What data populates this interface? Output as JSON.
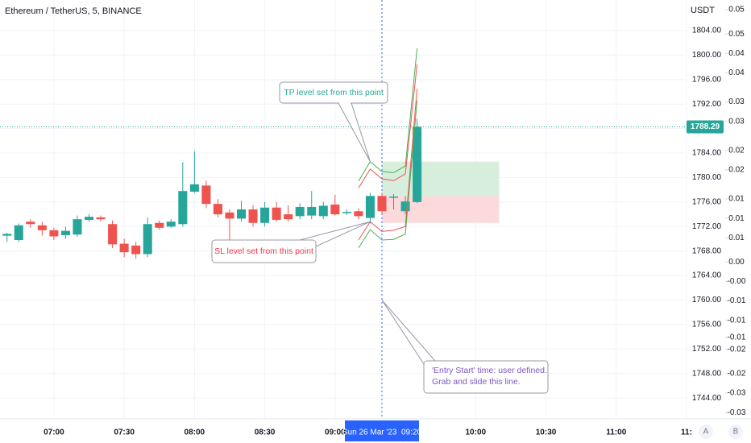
{
  "chart_data": {
    "type": "candlestick",
    "title": "Ethereum / TetherUS, 5, BINANCE",
    "y_axis_label": "USDT",
    "x": [
      "06:40",
      "06:45",
      "06:50",
      "06:55",
      "07:00",
      "07:05",
      "07:10",
      "07:15",
      "07:20",
      "07:25",
      "07:30",
      "07:35",
      "07:40",
      "07:45",
      "07:50",
      "07:55",
      "08:00",
      "08:05",
      "08:10",
      "08:15",
      "08:20",
      "08:25",
      "08:30",
      "08:35",
      "08:40",
      "08:45",
      "08:50",
      "08:55",
      "09:00",
      "09:05",
      "09:10",
      "09:15",
      "09:20",
      "09:25",
      "09:30",
      "09:35"
    ],
    "open": [
      1770.5,
      1769.8,
      1772.8,
      1772.2,
      1771.4,
      1770.6,
      1770.7,
      1773.1,
      1773.5,
      1772.4,
      1769.2,
      1768.9,
      1767.5,
      1772.6,
      1772,
      1772.4,
      1777.7,
      1778.7,
      1775.7,
      1774.3,
      1773.3,
      1774.8,
      1772.6,
      1775.1,
      1774,
      1773.7,
      1773.8,
      1773.7,
      1775.6,
      1774.2,
      1774.5,
      1773.4,
      1777,
      1776.7,
      1774.5,
      1776
    ],
    "high": [
      1771,
      1772.5,
      1773.2,
      1772.8,
      1771.8,
      1772,
      1773.8,
      1774,
      1773.8,
      1773,
      1770,
      1769.5,
      1773.5,
      1773,
      1773.2,
      1782.5,
      1784.3,
      1779.5,
      1776.5,
      1774.8,
      1776.2,
      1775.5,
      1776,
      1776,
      1775.5,
      1775.8,
      1777.8,
      1776,
      1777.2,
      1774.8,
      1775,
      1777.5,
      1777.5,
      1777.3,
      1777,
      1789.6
    ],
    "low": [
      1769.5,
      1769.5,
      1771.8,
      1770.5,
      1769.8,
      1770,
      1770.3,
      1772.8,
      1772.8,
      1768.5,
      1767,
      1766.8,
      1767,
      1771.5,
      1771.8,
      1772,
      1777.5,
      1775,
      1773.5,
      1769.8,
      1772.8,
      1772,
      1772,
      1772.8,
      1772.8,
      1773.2,
      1773.2,
      1773.2,
      1773.8,
      1773.9,
      1773.2,
      1772.5,
      1774,
      1774.8,
      1774,
      1775.8
    ],
    "close": [
      1770.8,
      1772.2,
      1772.4,
      1771.4,
      1770.4,
      1771.3,
      1773.2,
      1773.6,
      1773.2,
      1769.1,
      1767.8,
      1767.5,
      1772.4,
      1771.8,
      1772.8,
      1777.8,
      1778.9,
      1775.7,
      1774,
      1773.3,
      1774.8,
      1772.6,
      1775.1,
      1773.1,
      1773.2,
      1775.2,
      1775.2,
      1775.4,
      1774,
      1774.4,
      1773.7,
      1777,
      1774.5,
      1776.9,
      1776.1,
      1788.29
    ],
    "up_color": "#26a69a",
    "down_color": "#ef5350",
    "xlim": [
      "06:37",
      "11:30"
    ],
    "xticks": [
      "07:00",
      "07:30",
      "08:00",
      "08:30",
      "09:00",
      "10:00",
      "10:30",
      "11:00",
      {
        "value": "11:30",
        "label": "11:"
      }
    ],
    "ylim": [
      1740.6,
      1809
    ],
    "yticks": [
      {
        "value": 1744,
        "label": "1744.00"
      },
      {
        "value": 1748,
        "label": "1748.00"
      },
      {
        "value": 1752,
        "label": "1752.00"
      },
      {
        "value": 1756,
        "label": "1756.00"
      },
      {
        "value": 1760,
        "label": "1760.00"
      },
      {
        "value": 1764,
        "label": "1764.00"
      },
      {
        "value": 1768,
        "label": "1768.00"
      },
      {
        "value": 1772,
        "label": "1772.00"
      },
      {
        "value": 1776,
        "label": "1776.00"
      },
      {
        "value": 1780,
        "label": "1780.00"
      },
      {
        "value": 1784,
        "label": "1784.00"
      },
      {
        "value": 1788,
        "label": "1788.00"
      },
      {
        "value": 1792,
        "label": "1792.00"
      },
      {
        "value": 1796,
        "label": "1796.00"
      },
      {
        "value": 1800,
        "label": "1800.00"
      },
      {
        "value": 1804,
        "label": "1804.00"
      }
    ],
    "y2lim": [
      -0.0313,
      0.055
    ],
    "y2ticks": [
      {
        "value": 0.053,
        "label": "0.05"
      },
      {
        "value": 0.048,
        "label": "0.05"
      },
      {
        "value": 0.044,
        "label": "0.04"
      },
      {
        "value": 0.04,
        "label": "0.04"
      },
      {
        "value": 0.034,
        "label": "0.03"
      },
      {
        "value": 0.03,
        "label": "0.03"
      },
      {
        "value": 0.024,
        "label": "0.02"
      },
      {
        "value": 0.02,
        "label": "0.02"
      },
      {
        "value": 0.014,
        "label": "0.01"
      },
      {
        "value": 0.01,
        "label": "0.01"
      },
      {
        "value": 0.006,
        "label": "0.01"
      },
      {
        "value": 0.001,
        "label": "0.00"
      },
      {
        "value": -0.003,
        "label": "-0.00"
      },
      {
        "value": -0.007,
        "label": "-0.01"
      },
      {
        "value": -0.011,
        "label": "-0.01"
      },
      {
        "value": -0.0145,
        "label": "-0.01"
      },
      {
        "value": -0.017,
        "label": "-0.02"
      },
      {
        "value": -0.022,
        "label": "-0.02"
      },
      {
        "value": -0.026,
        "label": "-0.03"
      },
      {
        "value": -0.03,
        "label": "-0.03"
      }
    ],
    "grid": true,
    "crosshair": {
      "x": "09:20",
      "label": "Sun 26 Mar '23  09:20",
      "color": "#2962ff"
    },
    "lines": [
      {
        "color": "#4caf50",
        "x": [
          "09:10",
          "09:15",
          "09:20",
          "09:25",
          "09:30",
          "09:35"
        ],
        "values": [
          1779.4,
          1782.6,
          1781.0,
          1780.8,
          1781.9,
          1801.1
        ]
      },
      {
        "color": "#ef5350",
        "x": [
          "09:10",
          "09:15",
          "09:20",
          "09:25",
          "09:30",
          "09:35"
        ],
        "values": [
          1778.3,
          1781.4,
          1779.8,
          1779.5,
          1780.6,
          1798.5
        ]
      },
      {
        "color": "#ef5350",
        "x": [
          "09:10",
          "09:15",
          "09:20",
          "09:25",
          "09:30",
          "09:35"
        ],
        "values": [
          1769.8,
          1772.8,
          1771.2,
          1771.4,
          1772.0,
          1794.5
        ]
      },
      {
        "color": "#4caf50",
        "x": [
          "09:10",
          "09:15",
          "09:20",
          "09:25",
          "09:30",
          "09:35"
        ],
        "values": [
          1768.5,
          1771.5,
          1769.8,
          1769.9,
          1770.8,
          1792.6
        ]
      }
    ],
    "position": {
      "start": "09:20",
      "end": "10:10",
      "entry": 1777,
      "tp": 1782.6,
      "sl": 1772.6,
      "profit_color": "#d6eedb",
      "loss_color": "#fcdadb"
    },
    "annotations": [
      {
        "lines": [
          "TP level set from this point"
        ],
        "color": "#22ab94",
        "x": "09:15",
        "y": 1782.6
      },
      {
        "lines": [
          "SL level set from this point"
        ],
        "color": "#f23645",
        "x": "09:15",
        "y": 1772.8
      },
      {
        "lines": [
          "'Entry Start' time: user defined.",
          "Grab and slide this line."
        ],
        "color": "#7e57c2",
        "x": "09:20",
        "y": 1760
      }
    ],
    "buttons": [
      "A",
      "B"
    ]
  }
}
